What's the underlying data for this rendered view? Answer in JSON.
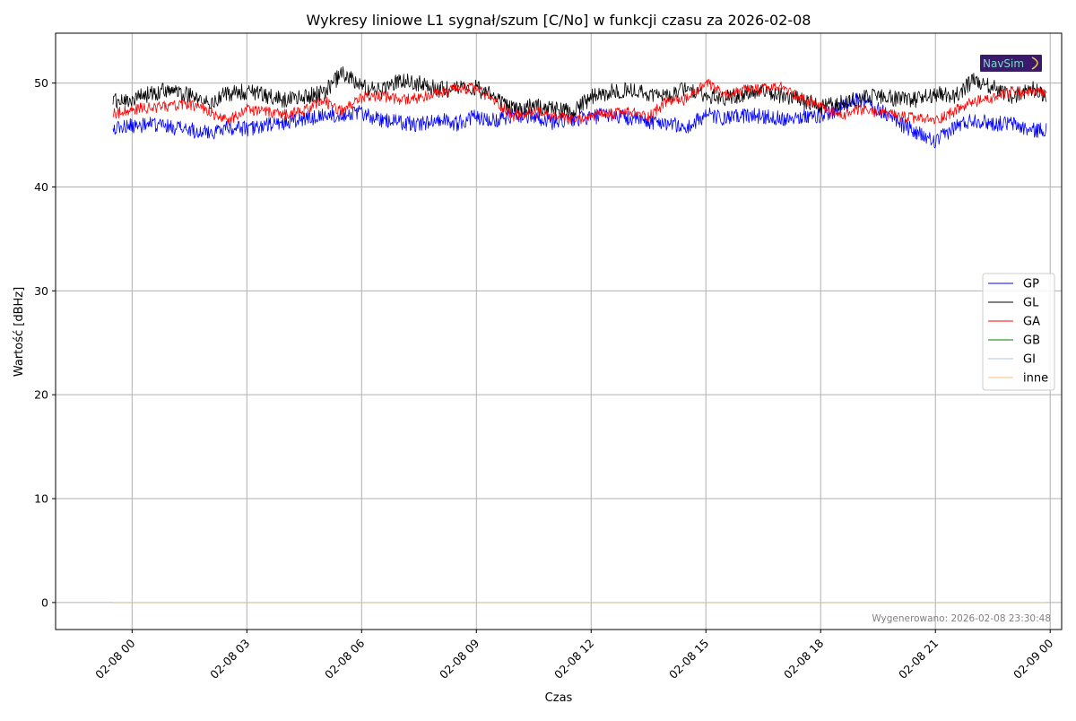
{
  "chart_data": {
    "type": "line",
    "title": "Wykresy liniowe L1 sygnał/szum [C/No] w funkcji czasu za 2026-02-08",
    "xlabel": "Czas",
    "ylabel": "Wartość [dBHz]",
    "x_range_hours": [
      -2.0,
      24.3
    ],
    "ylim": [
      -2.6,
      54.8
    ],
    "x_ticks": [
      {
        "hour": 0,
        "label": "02-08 00"
      },
      {
        "hour": 3,
        "label": "02-08 03"
      },
      {
        "hour": 6,
        "label": "02-08 06"
      },
      {
        "hour": 9,
        "label": "02-08 09"
      },
      {
        "hour": 12,
        "label": "02-08 12"
      },
      {
        "hour": 15,
        "label": "02-08 15"
      },
      {
        "hour": 18,
        "label": "02-08 18"
      },
      {
        "hour": 21,
        "label": "02-08 21"
      },
      {
        "hour": 24,
        "label": "02-09 00"
      }
    ],
    "y_ticks": [
      0,
      10,
      20,
      30,
      40,
      50
    ],
    "grid": true,
    "legend_position": "center-right",
    "series": [
      {
        "name": "GP",
        "color": "#0000ff",
        "x": [
          -0.5,
          0.5,
          1,
          1.5,
          2,
          2.5,
          3,
          3.5,
          4,
          4.5,
          5,
          5.5,
          6,
          6.5,
          7,
          7.5,
          8,
          8.5,
          9,
          9.5,
          10,
          10.5,
          11,
          11.5,
          12,
          12.5,
          13,
          13.5,
          14,
          14.5,
          15,
          15.5,
          16,
          16.5,
          17,
          17.5,
          18,
          18.5,
          19,
          19.5,
          20,
          20.5,
          21,
          21.5,
          22,
          22.5,
          23,
          23.5,
          23.9
        ],
        "y": [
          45.7,
          46,
          45.8,
          45.5,
          45.2,
          45.8,
          45.6,
          45.9,
          46.2,
          46.5,
          46.9,
          47,
          47.1,
          46.4,
          46.2,
          46,
          46.6,
          46.1,
          46.8,
          46.4,
          47,
          46.8,
          46.2,
          46.5,
          46.7,
          47,
          46.6,
          46.3,
          46.2,
          45.6,
          47,
          46.5,
          46.9,
          46.8,
          46.6,
          46.8,
          46.8,
          47.6,
          48.4,
          47.5,
          46.3,
          45.2,
          44.3,
          45.8,
          46.5,
          46.1,
          46.1,
          45.4,
          45.6
        ]
      },
      {
        "name": "GL",
        "color": "#000000",
        "x": [
          -0.5,
          0,
          0.5,
          1,
          1.5,
          2,
          2.5,
          3,
          3.5,
          4,
          4.5,
          5,
          5.5,
          6,
          6.5,
          7,
          7.5,
          8,
          8.5,
          9,
          9.5,
          10,
          10.5,
          11,
          11.5,
          12,
          12.5,
          13,
          13.5,
          14,
          14.5,
          15,
          15.5,
          16,
          16.5,
          17,
          17.5,
          18,
          18.5,
          19,
          19.5,
          20,
          20.5,
          21,
          21.5,
          22,
          22.5,
          23,
          23.5,
          23.9
        ],
        "y": [
          48.2,
          48.4,
          49,
          49.4,
          48.8,
          48,
          49,
          49.2,
          48.8,
          48.3,
          48.7,
          49,
          51,
          49.6,
          49.2,
          50.3,
          50,
          49.4,
          49.4,
          49.5,
          48.6,
          47.4,
          47.8,
          47.5,
          47.2,
          48.6,
          49.2,
          49.4,
          49,
          48.7,
          49.6,
          48.9,
          48.5,
          48.9,
          49.2,
          48.8,
          48.4,
          47.8,
          48,
          48.7,
          48.7,
          48.5,
          48.4,
          49,
          48.8,
          50.2,
          49.6,
          48.7,
          49.5,
          48.7
        ]
      },
      {
        "name": "GA",
        "color": "#ff0000",
        "x": [
          -0.5,
          0,
          0.5,
          1,
          1.5,
          2,
          2.5,
          3,
          3.5,
          4,
          4.5,
          5,
          5.5,
          6,
          6.5,
          7,
          7.5,
          8,
          8.5,
          9,
          9.5,
          10,
          10.5,
          11,
          11.5,
          12,
          12.5,
          13,
          13.5,
          14,
          14.5,
          15,
          15.5,
          16,
          16.5,
          17,
          17.5,
          18,
          18.5,
          19,
          19.5,
          20,
          20.5,
          21,
          21.5,
          22,
          22.5,
          23,
          23.5,
          23.9
        ],
        "y": [
          47,
          47.5,
          47.6,
          47.8,
          48,
          47.2,
          46.4,
          47.5,
          47.2,
          47,
          47.3,
          48.3,
          47.3,
          48.6,
          48.8,
          48.4,
          48.6,
          49,
          49.4,
          49.5,
          48.2,
          46.8,
          47.2,
          46.8,
          46.4,
          46.8,
          47,
          47.2,
          46.8,
          48.3,
          48.4,
          50,
          48.8,
          49.3,
          49.4,
          49.6,
          48.5,
          47.8,
          46.8,
          47.4,
          47.2,
          46.8,
          46.6,
          46.4,
          47.3,
          48.2,
          48.5,
          49.2,
          49.1,
          48.9
        ]
      },
      {
        "name": "GB",
        "color": "#008000",
        "x": [
          -0.5,
          23.9
        ],
        "y": [
          0,
          0
        ]
      },
      {
        "name": "GI",
        "color": "#aec7e8",
        "x": [
          -0.5,
          23.9
        ],
        "y": [
          0,
          0
        ]
      },
      {
        "name": "inne",
        "color": "#ffbb78",
        "x": [
          -0.5,
          23.9
        ],
        "y": [
          0,
          0
        ]
      }
    ],
    "footnote": "Wygenerowano: 2026-02-08 23:30:48",
    "logo": {
      "text": "NavSim",
      "background": "#3b1a6e",
      "text_color": "#7fd7c4",
      "accent": "#f2d14b"
    }
  }
}
